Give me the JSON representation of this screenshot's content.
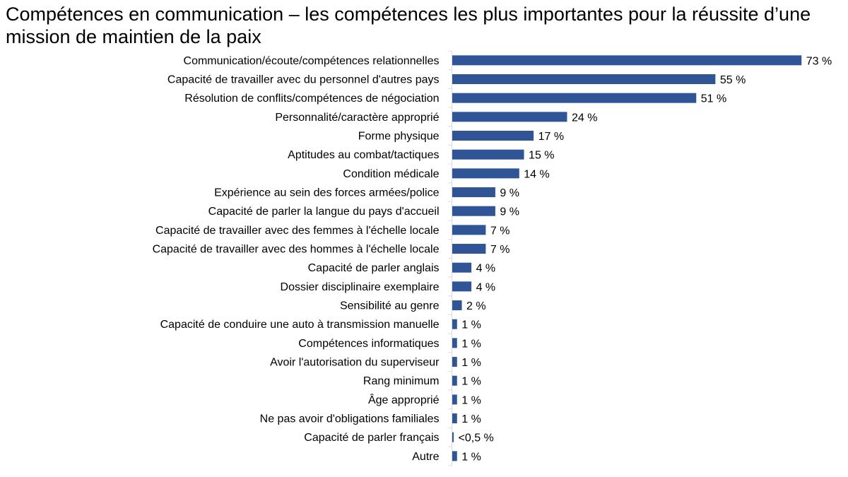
{
  "chart_data": {
    "type": "bar",
    "orientation": "horizontal",
    "title": "Compétences en communication – les compétences les plus importantes pour la réussite d’une mission de maintien de la paix",
    "categories": [
      "Communication/écoute/compétences relationnelles",
      "Capacité de travailler avec du personnel d'autres pays",
      "Résolution de conflits/compétences de négociation",
      "Personnalité/caractère approprié",
      "Forme physique",
      "Aptitudes au combat/tactiques",
      "Condition médicale",
      "Expérience au sein des forces armées/police",
      "Capacité de parler la langue du pays d'accueil",
      "Capacité de travailler avec des femmes à l'échelle locale",
      "Capacité de travailler avec des hommes à l'échelle locale",
      "Capacité de parler anglais",
      "Dossier disciplinaire exemplaire",
      "Sensibilité au genre",
      "Capacité de conduire une auto à transmission manuelle",
      "Compétences informatiques",
      "Avoir l'autorisation du superviseur",
      "Rang minimum",
      "Âge approprié",
      "Ne pas avoir d'obligations familiales",
      "Capacité de parler français",
      "Autre"
    ],
    "values": [
      73,
      55,
      51,
      24,
      17,
      15,
      14,
      9,
      9,
      7,
      7,
      4,
      4,
      2,
      1,
      1,
      1,
      1,
      1,
      1,
      0.3,
      1
    ],
    "data_labels": [
      "73 %",
      "55 %",
      "51 %",
      "24 %",
      "17 %",
      "15 %",
      "14 %",
      "9 %",
      "9 %",
      "7 %",
      "7 %",
      "4 %",
      "4 %",
      "2 %",
      "1 %",
      "1 %",
      "1 %",
      "1 %",
      "1 %",
      "1 %",
      "<0,5 %",
      "1 %"
    ],
    "xlabel": "",
    "ylabel": "",
    "xlim": [
      0,
      80
    ],
    "grid": false,
    "legend": "none",
    "bar_color": "#2F5597"
  }
}
